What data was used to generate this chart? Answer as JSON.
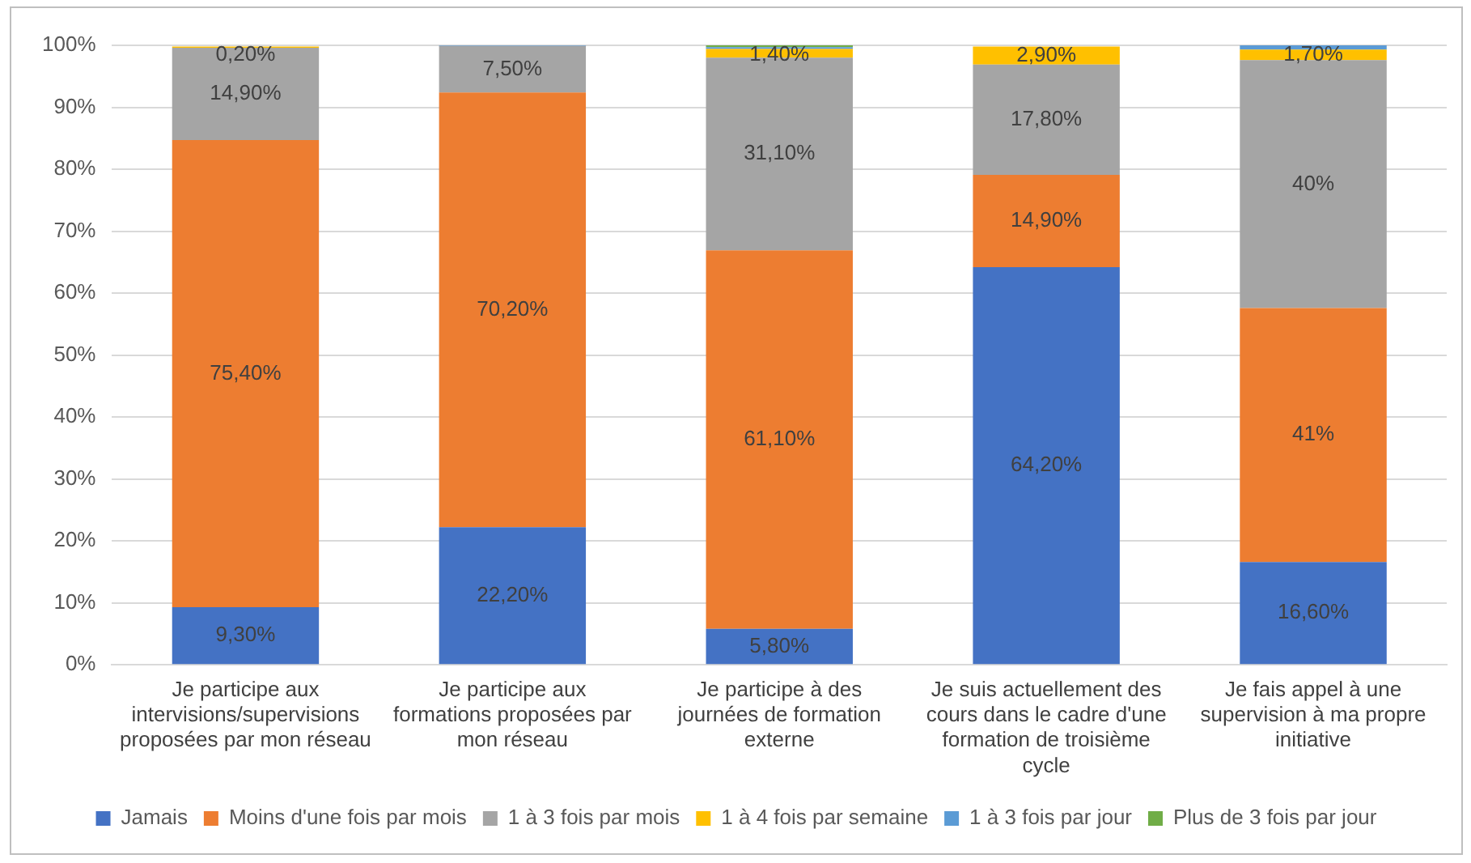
{
  "chart_data": {
    "type": "bar",
    "stacked": true,
    "grid": "y",
    "legend": "bottom",
    "categories": [
      "Je participe aux intervisions/supervisions proposées par mon réseau",
      "Je participe aux formations proposées par mon réseau",
      "Je participe à des journées de formation externe",
      "Je suis actuellement des cours dans le cadre d'une formation de troisième cycle",
      "Je fais appel à une supervision à ma propre initiative"
    ],
    "ylim": [
      0,
      100
    ],
    "yticks": [
      {
        "value": 0,
        "label": "0%"
      },
      {
        "value": 10,
        "label": "10%"
      },
      {
        "value": 20,
        "label": "20%"
      },
      {
        "value": 30,
        "label": "30%"
      },
      {
        "value": 40,
        "label": "40%"
      },
      {
        "value": 50,
        "label": "50%"
      },
      {
        "value": 60,
        "label": "60%"
      },
      {
        "value": 70,
        "label": "70%"
      },
      {
        "value": 80,
        "label": "80%"
      },
      {
        "value": 90,
        "label": "90%"
      },
      {
        "value": 100,
        "label": "100%"
      }
    ],
    "series": [
      {
        "name": "Jamais",
        "color": "#4472c4",
        "values": [
          9.3,
          22.2,
          5.8,
          64.2,
          16.6
        ],
        "value_labels": [
          "9,30%",
          "22,20%",
          "5,80%",
          "64,20%",
          "16,60%"
        ]
      },
      {
        "name": "Moins d'une fois par mois",
        "color": "#ed7d31",
        "values": [
          75.4,
          70.2,
          61.1,
          14.9,
          41
        ],
        "value_labels": [
          "75,40%",
          "70,20%",
          "61,10%",
          "14,90%",
          "41%"
        ]
      },
      {
        "name": "1 à 3 fois par mois",
        "color": "#a5a5a5",
        "values": [
          14.9,
          7.5,
          31.1,
          17.8,
          40
        ],
        "value_labels": [
          "14,90%",
          "7,50%",
          "31,10%",
          "17,80%",
          "40%"
        ]
      },
      {
        "name": "1 à 4 fois par semaine",
        "color": "#ffc000",
        "values": [
          0.2,
          null,
          1.4,
          2.9,
          1.7
        ],
        "value_labels": [
          "0,20%",
          null,
          "1,40%",
          "2,90%",
          "1,70%"
        ]
      },
      {
        "name": "1 à 3 fois par jour",
        "color": "#5b9bd5",
        "values": [
          null,
          0.1,
          0.3,
          null,
          0.7
        ],
        "value_labels": [
          null,
          null,
          null,
          null,
          null
        ]
      },
      {
        "name": "Plus de 3 fois par jour",
        "color": "#70ad47",
        "values": [
          null,
          null,
          0.3,
          null,
          null
        ],
        "value_labels": [
          null,
          null,
          null,
          null,
          null
        ]
      }
    ]
  }
}
